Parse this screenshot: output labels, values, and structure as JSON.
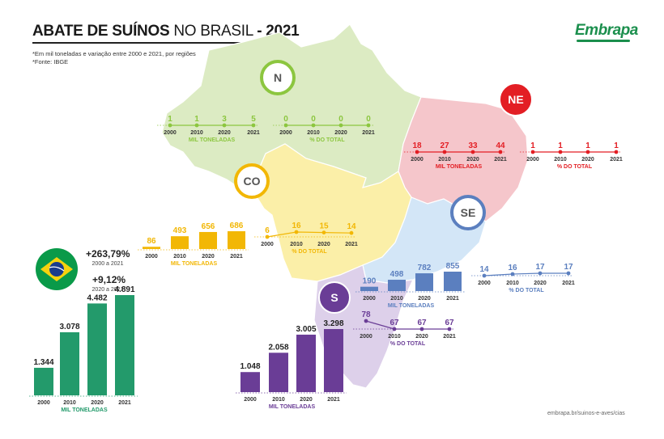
{
  "header": {
    "title_bold": "ABATE DE SUÍNOS",
    "title_light": "NO BRASIL",
    "title_year": "- 2021",
    "note": "*Em mil toneladas e variação entre 2000 e 2021, por regiões",
    "source": "*Fonte: IBGE",
    "logo": "Embrapa",
    "credit": "embrapa.br/suinos-e-aves/cias"
  },
  "colors": {
    "N": "#8cc63f",
    "NE": "#e31e24",
    "CO": "#f2b705",
    "SE": "#5b7fbf",
    "S": "#6a3d96",
    "BR": "#239a6b",
    "map_N": "#dcebc3",
    "map_NE": "#f5c6cb",
    "map_CO": "#fbefa8",
    "map_SE": "#d3e6f7",
    "map_S": "#ddd0ea"
  },
  "chart_data": [
    {
      "id": "BR",
      "type": "bar",
      "categories": [
        "2000",
        "2010",
        "2020",
        "2021"
      ],
      "values": [
        1344,
        3078,
        4482,
        4891
      ],
      "value_labels": [
        "1.344",
        "3.078",
        "4.482",
        "4.891"
      ],
      "xlabel": "MIL TONELADAS",
      "variation": [
        {
          "value": "+263,79",
          "unit": "%",
          "period": "2000 a 2021"
        },
        {
          "value": "+9,12",
          "unit": "%",
          "period": "2020 a 2021"
        }
      ]
    },
    {
      "id": "N",
      "badge": "N",
      "tonnes": {
        "type": "line",
        "categories": [
          "2000",
          "2010",
          "2020",
          "2021"
        ],
        "values": [
          1,
          1,
          3,
          5
        ],
        "value_labels": [
          "1",
          "1",
          "3",
          "5"
        ],
        "xlabel": "MIL TONELADAS"
      },
      "share": {
        "type": "line",
        "categories": [
          "2000",
          "2010",
          "2020",
          "2021"
        ],
        "values": [
          0,
          0,
          0,
          0
        ],
        "value_labels": [
          "0",
          "0",
          "0",
          "0"
        ],
        "xlabel": "% DO TOTAL"
      }
    },
    {
      "id": "NE",
      "badge": "NE",
      "tonnes": {
        "type": "line",
        "categories": [
          "2000",
          "2010",
          "2020",
          "2021"
        ],
        "values": [
          18,
          27,
          33,
          44
        ],
        "value_labels": [
          "18",
          "27",
          "33",
          "44"
        ],
        "xlabel": "MIL TONELADAS"
      },
      "share": {
        "type": "line",
        "categories": [
          "2000",
          "2010",
          "2020",
          "2021"
        ],
        "values": [
          1,
          1,
          1,
          1
        ],
        "value_labels": [
          "1",
          "1",
          "1",
          "1"
        ],
        "xlabel": "% DO TOTAL"
      }
    },
    {
      "id": "CO",
      "badge": "CO",
      "tonnes": {
        "type": "bar",
        "categories": [
          "2000",
          "2010",
          "2020",
          "2021"
        ],
        "values": [
          86,
          493,
          656,
          686
        ],
        "value_labels": [
          "86",
          "493",
          "656",
          "686"
        ],
        "xlabel": "MIL TONELADAS"
      },
      "share": {
        "type": "line",
        "categories": [
          "2000",
          "2010",
          "2020",
          "2021"
        ],
        "values": [
          6,
          16,
          15,
          14
        ],
        "value_labels": [
          "6",
          "16",
          "15",
          "14"
        ],
        "xlabel": "% DO TOTAL"
      }
    },
    {
      "id": "SE",
      "badge": "SE",
      "tonnes": {
        "type": "bar",
        "categories": [
          "2000",
          "2010",
          "2020",
          "2021"
        ],
        "values": [
          190,
          498,
          782,
          855
        ],
        "value_labels": [
          "190",
          "498",
          "782",
          "855"
        ],
        "xlabel": "MIL TONELADAS"
      },
      "share": {
        "type": "line",
        "categories": [
          "2000",
          "2010",
          "2020",
          "2021"
        ],
        "values": [
          14,
          16,
          17,
          17
        ],
        "value_labels": [
          "14",
          "16",
          "17",
          "17"
        ],
        "xlabel": "% DO TOTAL"
      }
    },
    {
      "id": "S",
      "badge": "S",
      "tonnes": {
        "type": "bar",
        "categories": [
          "2000",
          "2010",
          "2020",
          "2021"
        ],
        "values": [
          1048,
          2058,
          3005,
          3298
        ],
        "value_labels": [
          "1.048",
          "2.058",
          "3.005",
          "3.298"
        ],
        "xlabel": "MIL TONELADAS"
      },
      "share": {
        "type": "line",
        "categories": [
          "2000",
          "2010",
          "2020",
          "2021"
        ],
        "values": [
          78,
          67,
          67,
          67
        ],
        "value_labels": [
          "78",
          "67",
          "67",
          "67"
        ],
        "xlabel": "% DO TOTAL"
      }
    }
  ]
}
